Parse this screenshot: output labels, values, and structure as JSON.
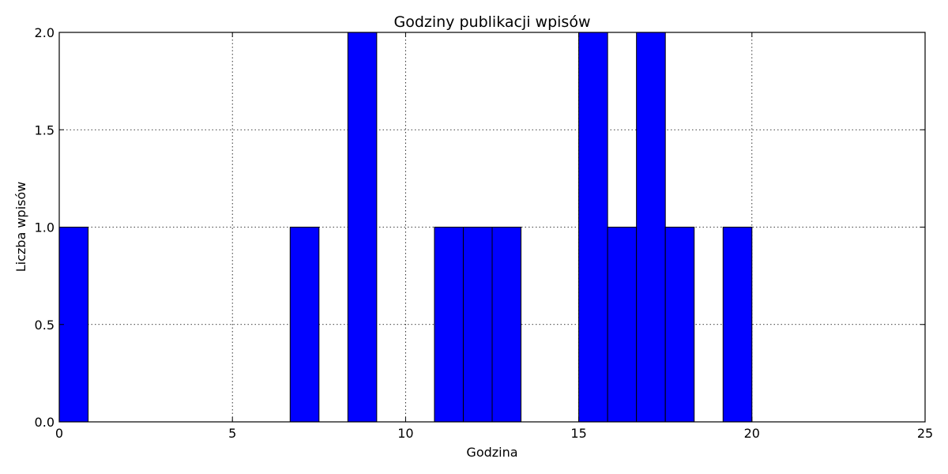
{
  "chart_data": {
    "type": "bar",
    "title": "Godziny publikacji wpisów",
    "xlabel": "Godzina",
    "ylabel": "Liczba wpisów",
    "xlim": [
      0,
      25
    ],
    "ylim": [
      0,
      2.0
    ],
    "xticks": [
      "0",
      "5",
      "10",
      "15",
      "20",
      "25"
    ],
    "yticks": [
      "0.0",
      "0.5",
      "1.0",
      "1.5",
      "2.0"
    ],
    "grid": true,
    "bar_color": "#0000ff",
    "bin_width": 0.8333,
    "bars": [
      {
        "x_start": 0.0,
        "value": 1
      },
      {
        "x_start": 6.6667,
        "value": 1
      },
      {
        "x_start": 8.3333,
        "value": 2
      },
      {
        "x_start": 10.8333,
        "value": 1
      },
      {
        "x_start": 11.6667,
        "value": 1
      },
      {
        "x_start": 12.5,
        "value": 1
      },
      {
        "x_start": 15.0,
        "value": 2
      },
      {
        "x_start": 15.8333,
        "value": 1
      },
      {
        "x_start": 16.6667,
        "value": 2
      },
      {
        "x_start": 17.5,
        "value": 1
      },
      {
        "x_start": 19.1667,
        "value": 1
      }
    ]
  }
}
